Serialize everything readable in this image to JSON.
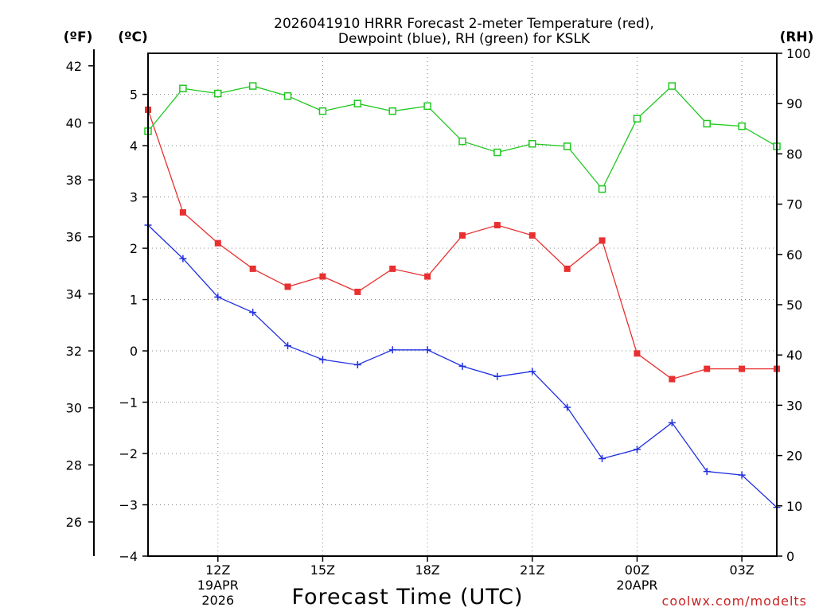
{
  "colors": {
    "temp": "#e83030",
    "dewpoint": "#2030e0",
    "rh": "#20c820",
    "credit": "#cc2222"
  },
  "chart_data": {
    "type": "line",
    "title": "2026041910 HRRR Forecast 2-meter Temperature (red),",
    "subtitle": "Dewpoint (blue), RH (green) for KSLK",
    "xlabel": "Forecast Time (UTC)",
    "credit": "coolwx.com/modelts",
    "unit_f": "(ºF)",
    "unit_c": "(ºC)",
    "unit_rh": "(RH)",
    "x_hours": [
      10,
      11,
      12,
      13,
      14,
      15,
      16,
      17,
      18,
      19,
      20,
      21,
      22,
      23,
      24,
      25,
      26,
      27,
      28
    ],
    "xlim": [
      10,
      28
    ],
    "x_ticks": [
      {
        "hour": 12,
        "label": "12Z",
        "line2": "19APR",
        "line3": "2026"
      },
      {
        "hour": 15,
        "label": "15Z",
        "line2": "",
        "line3": ""
      },
      {
        "hour": 18,
        "label": "18Z",
        "line2": "",
        "line3": ""
      },
      {
        "hour": 21,
        "label": "21Z",
        "line2": "",
        "line3": ""
      },
      {
        "hour": 24,
        "label": "00Z",
        "line2": "20APR",
        "line3": ""
      },
      {
        "hour": 27,
        "label": "03Z",
        "line2": "",
        "line3": ""
      }
    ],
    "ylim_c": [
      -4,
      5.8
    ],
    "y_ticks_c": [
      -4,
      -3,
      -2,
      -1,
      0,
      1,
      2,
      3,
      4,
      5
    ],
    "y_ticks_c_labels": [
      "−4",
      "−3",
      "−2",
      "−1",
      "0",
      "1",
      "2",
      "3",
      "4",
      "5"
    ],
    "y_ticks_f": [
      26,
      28,
      30,
      32,
      34,
      36,
      38,
      40,
      42
    ],
    "ylim_rh": [
      0,
      100
    ],
    "y_ticks_rh": [
      0,
      10,
      20,
      30,
      40,
      50,
      60,
      70,
      80,
      90,
      100
    ],
    "series": [
      {
        "name": "Temperature",
        "key": "temp",
        "axis": "c",
        "marker": "filled-square",
        "values": [
          4.7,
          2.7,
          2.1,
          1.6,
          1.25,
          1.45,
          1.15,
          1.6,
          1.45,
          2.25,
          2.45,
          2.25,
          1.6,
          2.15,
          -0.05,
          -0.55,
          -0.35,
          -0.35,
          -0.35
        ]
      },
      {
        "name": "Dewpoint",
        "key": "dewpoint",
        "axis": "c",
        "marker": "plus",
        "values": [
          2.45,
          1.8,
          1.05,
          0.75,
          0.1,
          -0.17,
          -0.27,
          0.02,
          0.02,
          -0.3,
          -0.5,
          -0.4,
          -1.1,
          -2.1,
          -1.92,
          -1.4,
          -2.35,
          -2.42,
          -3.05
        ]
      },
      {
        "name": "RH",
        "key": "rh",
        "axis": "rh",
        "marker": "open-square",
        "values": [
          84.5,
          93,
          92,
          93.5,
          91.5,
          88.5,
          90,
          88.5,
          89.5,
          82.5,
          80.3,
          82,
          81.5,
          73,
          87,
          93.5,
          86,
          85.5,
          81.5
        ]
      }
    ]
  }
}
